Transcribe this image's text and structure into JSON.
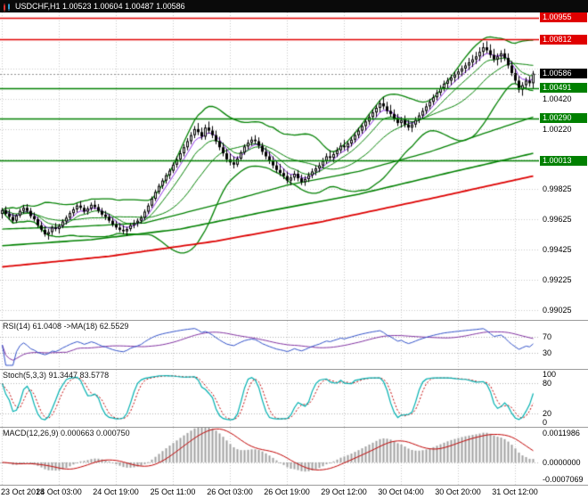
{
  "title": {
    "symbol_period": "USDCHF,H1",
    "open": "1.00523",
    "high": "1.00604",
    "low": "1.00487",
    "close": "1.00586",
    "text": "USDCHF,H1  1.00523 1.00604 1.00487 1.00586"
  },
  "chart_data": {
    "type": "candlestick+indicators",
    "symbol": "USDCHF",
    "timeframe": "H1",
    "colors": {
      "background": "#ffffff",
      "grid": "#c8c8c8",
      "candle": "#000000",
      "bull_fill": "#ffffff",
      "bear_fill": "#000000",
      "ma_green": "#008000",
      "ma_fast_violet": "#8a2be2",
      "ma_slow_red": "#dd0000",
      "level_green": "#008000",
      "level_red": "#e00000",
      "rsi_line": "#3050c8",
      "rsi_ma": "#8030a0",
      "stoch_main": "#00b0b0",
      "stoch_signal": "#c00000",
      "macd_hist": "#a0a0a0",
      "macd_signal": "#c00000",
      "tag_black": "#000000"
    },
    "main_scale": {
      "top": 1.0099,
      "bottom": 0.9896
    },
    "current_price": 1.00586,
    "levels": [
      {
        "price": 1.00955,
        "color": "#e00000"
      },
      {
        "price": 1.00812,
        "color": "#e00000"
      },
      {
        "price": 1.00491,
        "color": "#008000"
      },
      {
        "price": 1.0029,
        "color": "#008000"
      },
      {
        "price": 1.00013,
        "color": "#008000"
      }
    ],
    "price_axis": {
      "gridlines": [
        1.0062,
        1.0042,
        1.0022,
        1.0002,
        0.99825,
        0.99625,
        0.99425,
        0.99225,
        0.99025
      ],
      "labels": [
        {
          "text": "1.00420",
          "price": 1.0042
        },
        {
          "text": "1.00220",
          "price": 1.0022
        },
        {
          "text": "0.99825",
          "price": 0.99825
        },
        {
          "text": "0.99625",
          "price": 0.99625
        },
        {
          "text": "0.99425",
          "price": 0.99425
        },
        {
          "text": "0.99225",
          "price": 0.99225
        },
        {
          "text": "0.99025",
          "price": 0.99025
        }
      ],
      "tags": [
        {
          "text": "1.00955",
          "price": 1.00955,
          "bg": "#e00000"
        },
        {
          "text": "1.00812",
          "price": 1.00812,
          "bg": "#e00000"
        },
        {
          "text": "1.00586",
          "price": 1.00586,
          "bg": "#000000"
        },
        {
          "text": "1.00491",
          "price": 1.00491,
          "bg": "#008000"
        },
        {
          "text": "1.00290",
          "price": 1.0029,
          "bg": "#008000"
        },
        {
          "text": "1.00013",
          "price": 1.00013,
          "bg": "#008000"
        }
      ]
    },
    "time_axis": {
      "grid_bars": [
        0,
        16,
        32,
        48,
        64,
        80,
        96,
        112,
        128,
        144
      ],
      "labels": [
        "23 Oct 2018",
        "24 Oct 03:00",
        "24 Oct 19:00",
        "25 Oct 11:00",
        "26 Oct 03:00",
        "26 Oct 19:00",
        "29 Oct 12:00",
        "30 Oct 04:00",
        "30 Oct 20:00",
        "31 Oct 12:00"
      ]
    },
    "overlays": {
      "green_slow1": [
        [
          0,
          0.9956
        ],
        [
          20,
          0.99575
        ],
        [
          40,
          0.996
        ],
        [
          60,
          0.9972
        ],
        [
          80,
          0.9985
        ],
        [
          100,
          0.9994
        ],
        [
          120,
          1.0007
        ],
        [
          135,
          1.0019
        ],
        [
          149,
          1.003
        ]
      ],
      "green_slow2": [
        [
          0,
          0.9945
        ],
        [
          25,
          0.9949
        ],
        [
          50,
          0.9956
        ],
        [
          75,
          0.9968
        ],
        [
          100,
          0.9979
        ],
        [
          125,
          0.9993
        ],
        [
          149,
          1.0006
        ]
      ],
      "red_slow": [
        [
          0,
          0.9931
        ],
        [
          30,
          0.9938
        ],
        [
          60,
          0.9948
        ],
        [
          90,
          0.9961
        ],
        [
          120,
          0.9976
        ],
        [
          149,
          0.9991
        ]
      ]
    },
    "indicators": {
      "rsi": {
        "label": "RSI(14) 61.0408 ->MA(18) 62.5529",
        "period": 14,
        "ma_period": 18,
        "value": 61.0408,
        "ma_value": 62.5529,
        "levels": [
          70,
          30
        ],
        "axis": [
          "70",
          "30"
        ]
      },
      "stoch": {
        "label": "Stoch(5,3,3) 91.3447 83.5778",
        "k": 5,
        "slowing": 3,
        "d": 3,
        "value": 91.3447,
        "signal_value": 83.5778,
        "levels": [
          80,
          20
        ],
        "axis": [
          "100",
          "80",
          "20",
          "0"
        ]
      },
      "macd": {
        "label": "MACD(12,26,9) 0.000663 0.000750",
        "fast": 12,
        "slow": 26,
        "signal": 9,
        "value": 0.000663,
        "signal_value": 0.00075,
        "axis_top": "0.0011986",
        "axis_zero": "0.0000000",
        "axis_bottom": "-0.0007069",
        "range": [
          -0.0008,
          0.0013
        ]
      }
    },
    "ohlc": [
      [
        0.9966,
        0.997,
        0.9963,
        0.99685
      ],
      [
        0.99685,
        0.9971,
        0.9965,
        0.9966
      ],
      [
        0.9966,
        0.9969,
        0.9962,
        0.9964
      ],
      [
        0.9964,
        0.99665,
        0.996,
        0.99615
      ],
      [
        0.99615,
        0.9966,
        0.996,
        0.9965
      ],
      [
        0.9965,
        0.99695,
        0.99635,
        0.9968
      ],
      [
        0.9968,
        0.9972,
        0.9966,
        0.997
      ],
      [
        0.997,
        0.99725,
        0.99665,
        0.9968
      ],
      [
        0.9968,
        0.997,
        0.9963,
        0.99645
      ],
      [
        0.99645,
        0.9967,
        0.9961,
        0.99625
      ],
      [
        0.99625,
        0.9964,
        0.9957,
        0.99585
      ],
      [
        0.99585,
        0.9961,
        0.9954,
        0.99555
      ],
      [
        0.99555,
        0.9958,
        0.9951,
        0.99525
      ],
      [
        0.99525,
        0.9956,
        0.9949,
        0.9954
      ],
      [
        0.9954,
        0.99585,
        0.9952,
        0.9957
      ],
      [
        0.9957,
        0.996,
        0.99545,
        0.9956
      ],
      [
        0.9956,
        0.99595,
        0.9953,
        0.9958
      ],
      [
        0.9958,
        0.99625,
        0.99565,
        0.9961
      ],
      [
        0.9961,
        0.9965,
        0.9959,
        0.99635
      ],
      [
        0.99635,
        0.9968,
        0.9962,
        0.99665
      ],
      [
        0.99665,
        0.99705,
        0.99645,
        0.9969
      ],
      [
        0.9969,
        0.9973,
        0.9967,
        0.99715
      ],
      [
        0.99715,
        0.99745,
        0.99685,
        0.997
      ],
      [
        0.997,
        0.9972,
        0.9966,
        0.99675
      ],
      [
        0.99675,
        0.9971,
        0.99655,
        0.99695
      ],
      [
        0.99695,
        0.99735,
        0.9968,
        0.9972
      ],
      [
        0.9972,
        0.9975,
        0.9969,
        0.99705
      ],
      [
        0.99705,
        0.99725,
        0.99665,
        0.9968
      ],
      [
        0.9968,
        0.997,
        0.9964,
        0.99655
      ],
      [
        0.99655,
        0.9968,
        0.9962,
        0.9964
      ],
      [
        0.9964,
        0.9966,
        0.996,
        0.99615
      ],
      [
        0.99615,
        0.99635,
        0.99575,
        0.9959
      ],
      [
        0.9959,
        0.99615,
        0.99555,
        0.9957
      ],
      [
        0.9957,
        0.996,
        0.9954,
        0.99555
      ],
      [
        0.99555,
        0.99585,
        0.99525,
        0.99545
      ],
      [
        0.99545,
        0.99575,
        0.99515,
        0.9956
      ],
      [
        0.9956,
        0.996,
        0.99545,
        0.99585
      ],
      [
        0.99585,
        0.9962,
        0.99565,
        0.996
      ],
      [
        0.996,
        0.9963,
        0.99575,
        0.99615
      ],
      [
        0.99615,
        0.9965,
        0.99595,
        0.99635
      ],
      [
        0.99635,
        0.9969,
        0.9962,
        0.99675
      ],
      [
        0.99675,
        0.9973,
        0.9966,
        0.99715
      ],
      [
        0.99715,
        0.99775,
        0.997,
        0.9976
      ],
      [
        0.9976,
        0.9982,
        0.99745,
        0.99805
      ],
      [
        0.99805,
        0.9986,
        0.9979,
        0.99845
      ],
      [
        0.99845,
        0.99895,
        0.99825,
        0.9988
      ],
      [
        0.9988,
        0.9993,
        0.9986,
        0.99915
      ],
      [
        0.99915,
        0.9996,
        0.9989,
        0.99945
      ],
      [
        0.99945,
        1.0,
        0.9993,
        0.99985
      ],
      [
        0.99985,
        1.0004,
        0.99965,
        1.0002
      ],
      [
        1.0002,
        1.0008,
        1.0,
        1.0006
      ],
      [
        1.0006,
        1.0012,
        1.0004,
        1.001
      ],
      [
        1.001,
        1.0016,
        1.0008,
        1.0014
      ],
      [
        1.0014,
        1.002,
        1.0012,
        1.0018
      ],
      [
        1.0018,
        1.0024,
        1.0016,
        1.0022
      ],
      [
        1.0022,
        1.0026,
        1.0018,
        1.002
      ],
      [
        1.002,
        1.0023,
        1.0015,
        1.0017
      ],
      [
        1.0017,
        1.0025,
        1.0015,
        1.0023
      ],
      [
        1.0023,
        1.0027,
        1.0019,
        1.0021
      ],
      [
        1.0021,
        1.0024,
        1.0016,
        1.0018
      ],
      [
        1.0018,
        1.0021,
        1.0012,
        1.0014
      ],
      [
        1.0014,
        1.0017,
        1.0008,
        1.001
      ],
      [
        1.001,
        1.0013,
        1.0004,
        1.0006
      ],
      [
        1.0006,
        1.0009,
        1.0,
        1.0002
      ],
      [
        1.0002,
        1.0006,
        0.9998,
        1.0
      ],
      [
        1.0,
        1.0004,
        0.9996,
        0.99985
      ],
      [
        0.99985,
        1.0004,
        0.9997,
        1.00025
      ],
      [
        1.00025,
        1.0008,
        1.0001,
        1.00065
      ],
      [
        1.00065,
        1.0012,
        1.0005,
        1.00105
      ],
      [
        1.00105,
        1.0015,
        1.00085,
        1.0013
      ],
      [
        1.0013,
        1.0017,
        1.0011,
        1.0015
      ],
      [
        1.0015,
        1.0018,
        1.0012,
        1.0014
      ],
      [
        1.0014,
        1.00165,
        1.0009,
        1.0011
      ],
      [
        1.0011,
        1.0013,
        1.0005,
        1.0007
      ],
      [
        1.0007,
        1.001,
        1.0002,
        1.0004
      ],
      [
        1.0004,
        1.0007,
        0.9999,
        1.0001
      ],
      [
        1.0001,
        1.0004,
        0.9996,
        0.9998
      ],
      [
        0.9998,
        1.0001,
        0.9993,
        0.9995
      ],
      [
        0.9995,
        0.9999,
        0.9991,
        0.9993
      ],
      [
        0.9993,
        0.9996,
        0.9989,
        0.9991
      ],
      [
        0.9991,
        0.9994,
        0.9986,
        0.9988
      ],
      [
        0.9988,
        0.9992,
        0.9985,
        0.999
      ],
      [
        0.999,
        0.99945,
        0.9988,
        0.99925
      ],
      [
        0.99925,
        0.9995,
        0.99875,
        0.99895
      ],
      [
        0.99895,
        0.9992,
        0.9985,
        0.9987
      ],
      [
        0.9987,
        0.9991,
        0.99845,
        0.9989
      ],
      [
        0.9989,
        0.99935,
        0.9987,
        0.99915
      ],
      [
        0.99915,
        0.9996,
        0.99895,
        0.9994
      ],
      [
        0.9994,
        0.9998,
        0.99915,
        0.9996
      ],
      [
        0.9996,
        1.0,
        0.99935,
        0.9998
      ],
      [
        0.9998,
        1.0003,
        0.9996,
        1.0001
      ],
      [
        1.0001,
        1.0006,
        0.9999,
        1.0004
      ],
      [
        1.0004,
        1.0008,
        1.0001,
        1.0003
      ],
      [
        1.0003,
        1.0007,
        1.0,
        1.00055
      ],
      [
        1.00055,
        1.001,
        1.00035,
        1.0008
      ],
      [
        1.0008,
        1.0013,
        1.0006,
        1.0011
      ],
      [
        1.0011,
        1.0015,
        1.0008,
        1.001
      ],
      [
        1.001,
        1.0014,
        1.0007,
        1.00125
      ],
      [
        1.00125,
        1.0017,
        1.00105,
        1.0015
      ],
      [
        1.0015,
        1.002,
        1.0013,
        1.0018
      ],
      [
        1.0018,
        1.0023,
        1.0016,
        1.0021
      ],
      [
        1.0021,
        1.0026,
        1.0019,
        1.0024
      ],
      [
        1.0024,
        1.0029,
        1.0021,
        1.0027
      ],
      [
        1.0027,
        1.0032,
        1.0025,
        1.003
      ],
      [
        1.003,
        1.0035,
        1.0028,
        1.0033
      ],
      [
        1.0033,
        1.0038,
        1.003,
        1.0036
      ],
      [
        1.0036,
        1.0041,
        1.0033,
        1.0039
      ],
      [
        1.0039,
        1.0043,
        1.0035,
        1.0037
      ],
      [
        1.0037,
        1.004,
        1.0032,
        1.0034
      ],
      [
        1.0034,
        1.0038,
        1.003,
        1.0032
      ],
      [
        1.0032,
        1.0035,
        1.0027,
        1.0029
      ],
      [
        1.0029,
        1.0032,
        1.0024,
        1.0026
      ],
      [
        1.0026,
        1.003,
        1.0023,
        1.0028
      ],
      [
        1.0028,
        1.0031,
        1.0023,
        1.0025
      ],
      [
        1.0025,
        1.0028,
        1.0021,
        1.0023
      ],
      [
        1.0023,
        1.0027,
        1.002,
        1.0025
      ],
      [
        1.0025,
        1.003,
        1.0023,
        1.0028
      ],
      [
        1.0028,
        1.0033,
        1.0026,
        1.0031
      ],
      [
        1.0031,
        1.0036,
        1.0029,
        1.0034
      ],
      [
        1.0034,
        1.0039,
        1.0032,
        1.0037
      ],
      [
        1.0037,
        1.0042,
        1.0035,
        1.004
      ],
      [
        1.004,
        1.0045,
        1.0038,
        1.0043
      ],
      [
        1.0043,
        1.0048,
        1.0041,
        1.0046
      ],
      [
        1.0046,
        1.0051,
        1.0044,
        1.0049
      ],
      [
        1.0049,
        1.0054,
        1.0047,
        1.0052
      ],
      [
        1.0052,
        1.0056,
        1.0049,
        1.0054
      ],
      [
        1.0054,
        1.0058,
        1.0051,
        1.0056
      ],
      [
        1.0056,
        1.006,
        1.0053,
        1.0058
      ],
      [
        1.0058,
        1.0062,
        1.0055,
        1.006
      ],
      [
        1.006,
        1.0064,
        1.0057,
        1.0062
      ],
      [
        1.0062,
        1.0066,
        1.0059,
        1.0064
      ],
      [
        1.0064,
        1.0069,
        1.0061,
        1.0066
      ],
      [
        1.0066,
        1.0071,
        1.0063,
        1.0068
      ],
      [
        1.0068,
        1.0073,
        1.0065,
        1.007
      ],
      [
        1.007,
        1.0076,
        1.0067,
        1.0073
      ],
      [
        1.0073,
        1.0079,
        1.007,
        1.0076
      ],
      [
        1.0076,
        1.008,
        1.0072,
        1.0074
      ],
      [
        1.0074,
        1.0078,
        1.0069,
        1.0071
      ],
      [
        1.0071,
        1.0075,
        1.0066,
        1.0068
      ],
      [
        1.0068,
        1.0072,
        1.0064,
        1.007
      ],
      [
        1.007,
        1.0074,
        1.0066,
        1.0072
      ],
      [
        1.0072,
        1.0075,
        1.0067,
        1.0069
      ],
      [
        1.0069,
        1.0072,
        1.0062,
        1.0064
      ],
      [
        1.0064,
        1.0067,
        1.0057,
        1.0059
      ],
      [
        1.0059,
        1.0062,
        1.0052,
        1.0054
      ],
      [
        1.0054,
        1.0057,
        1.0046,
        1.0048
      ],
      [
        1.0048,
        1.0053,
        1.0044,
        1.0051
      ],
      [
        1.0051,
        1.0056,
        1.0048,
        1.0054
      ],
      [
        1.0054,
        1.0057,
        1.005,
        1.00523
      ],
      [
        1.00523,
        1.00604,
        1.00487,
        1.00586
      ]
    ]
  }
}
